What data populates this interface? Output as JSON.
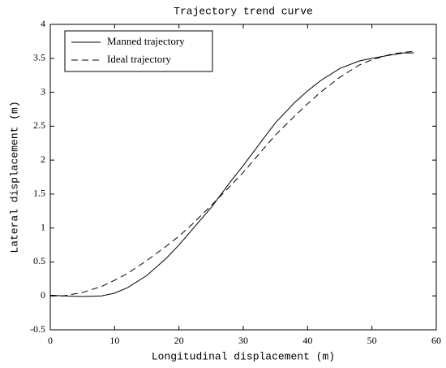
{
  "chart_data": {
    "type": "line",
    "title": "Trajectory trend curve",
    "x_label": "Longitudinal displacement (m)",
    "y_label": "Lateral displacement (m)",
    "x": [
      0,
      2,
      5,
      8,
      10,
      12,
      15,
      18,
      20,
      22,
      25,
      28,
      30,
      33,
      35,
      38,
      40,
      42,
      45,
      48,
      50,
      53,
      55,
      56.5
    ],
    "series": [
      {
        "name": "Manned trajectory",
        "color": "#000000",
        "dash": "solid",
        "values": [
          0.01,
          0.0,
          -0.01,
          0.0,
          0.04,
          0.12,
          0.3,
          0.55,
          0.75,
          0.97,
          1.3,
          1.68,
          1.92,
          2.3,
          2.55,
          2.85,
          3.02,
          3.17,
          3.35,
          3.46,
          3.5,
          3.55,
          3.58,
          3.58
        ]
      },
      {
        "name": "Ideal trajectory",
        "color": "#000000",
        "dash": "dashed",
        "values": [
          0.0,
          0.0,
          0.05,
          0.14,
          0.23,
          0.33,
          0.52,
          0.73,
          0.88,
          1.05,
          1.33,
          1.62,
          1.82,
          2.15,
          2.37,
          2.65,
          2.83,
          3.0,
          3.22,
          3.4,
          3.48,
          3.56,
          3.59,
          3.6
        ]
      }
    ],
    "xlim": [
      0,
      60
    ],
    "xticks": [
      0,
      10,
      20,
      30,
      40,
      50,
      60
    ],
    "ylim": [
      -0.5,
      4
    ],
    "yticks": [
      -0.5,
      0,
      0.5,
      1,
      1.5,
      2,
      2.5,
      3,
      3.5,
      4
    ],
    "grid": false,
    "legend": "upper-left"
  }
}
